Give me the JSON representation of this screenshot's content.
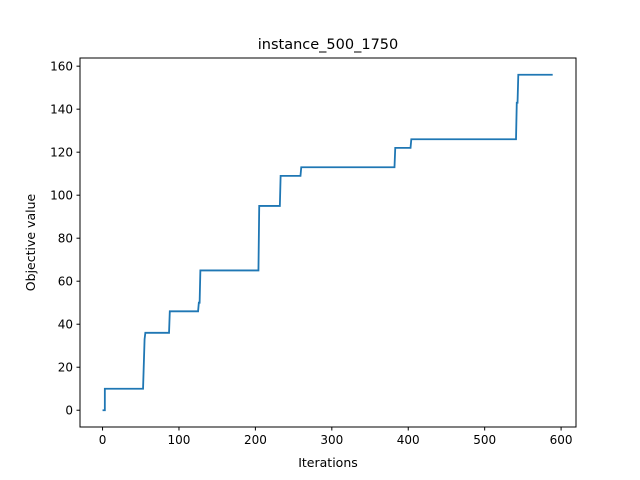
{
  "chart_data": {
    "type": "line",
    "title": "instance_500_1750",
    "xlabel": "Iterations",
    "ylabel": "Objective value",
    "xlim": [
      -29.5,
      619.5
    ],
    "ylim": [
      -7.8,
      163.8
    ],
    "xticks": [
      0,
      100,
      200,
      300,
      400,
      500,
      600
    ],
    "yticks": [
      0,
      20,
      40,
      60,
      80,
      100,
      120,
      140,
      160
    ],
    "grid": false,
    "series": [
      {
        "color": "#1f77b4",
        "x": [
          0,
          3,
          3,
          53,
          55,
          56,
          87,
          88,
          125,
          126,
          127,
          128,
          204,
          205,
          232,
          233,
          259,
          260,
          382,
          383,
          403,
          404,
          541,
          542,
          543,
          544,
          589
        ],
        "y": [
          0,
          0,
          10,
          10,
          33,
          36,
          36,
          46,
          46,
          50,
          50,
          65,
          65,
          95,
          95,
          109,
          109,
          113,
          113,
          122,
          122,
          126,
          126,
          143,
          143,
          156,
          156
        ]
      }
    ]
  }
}
